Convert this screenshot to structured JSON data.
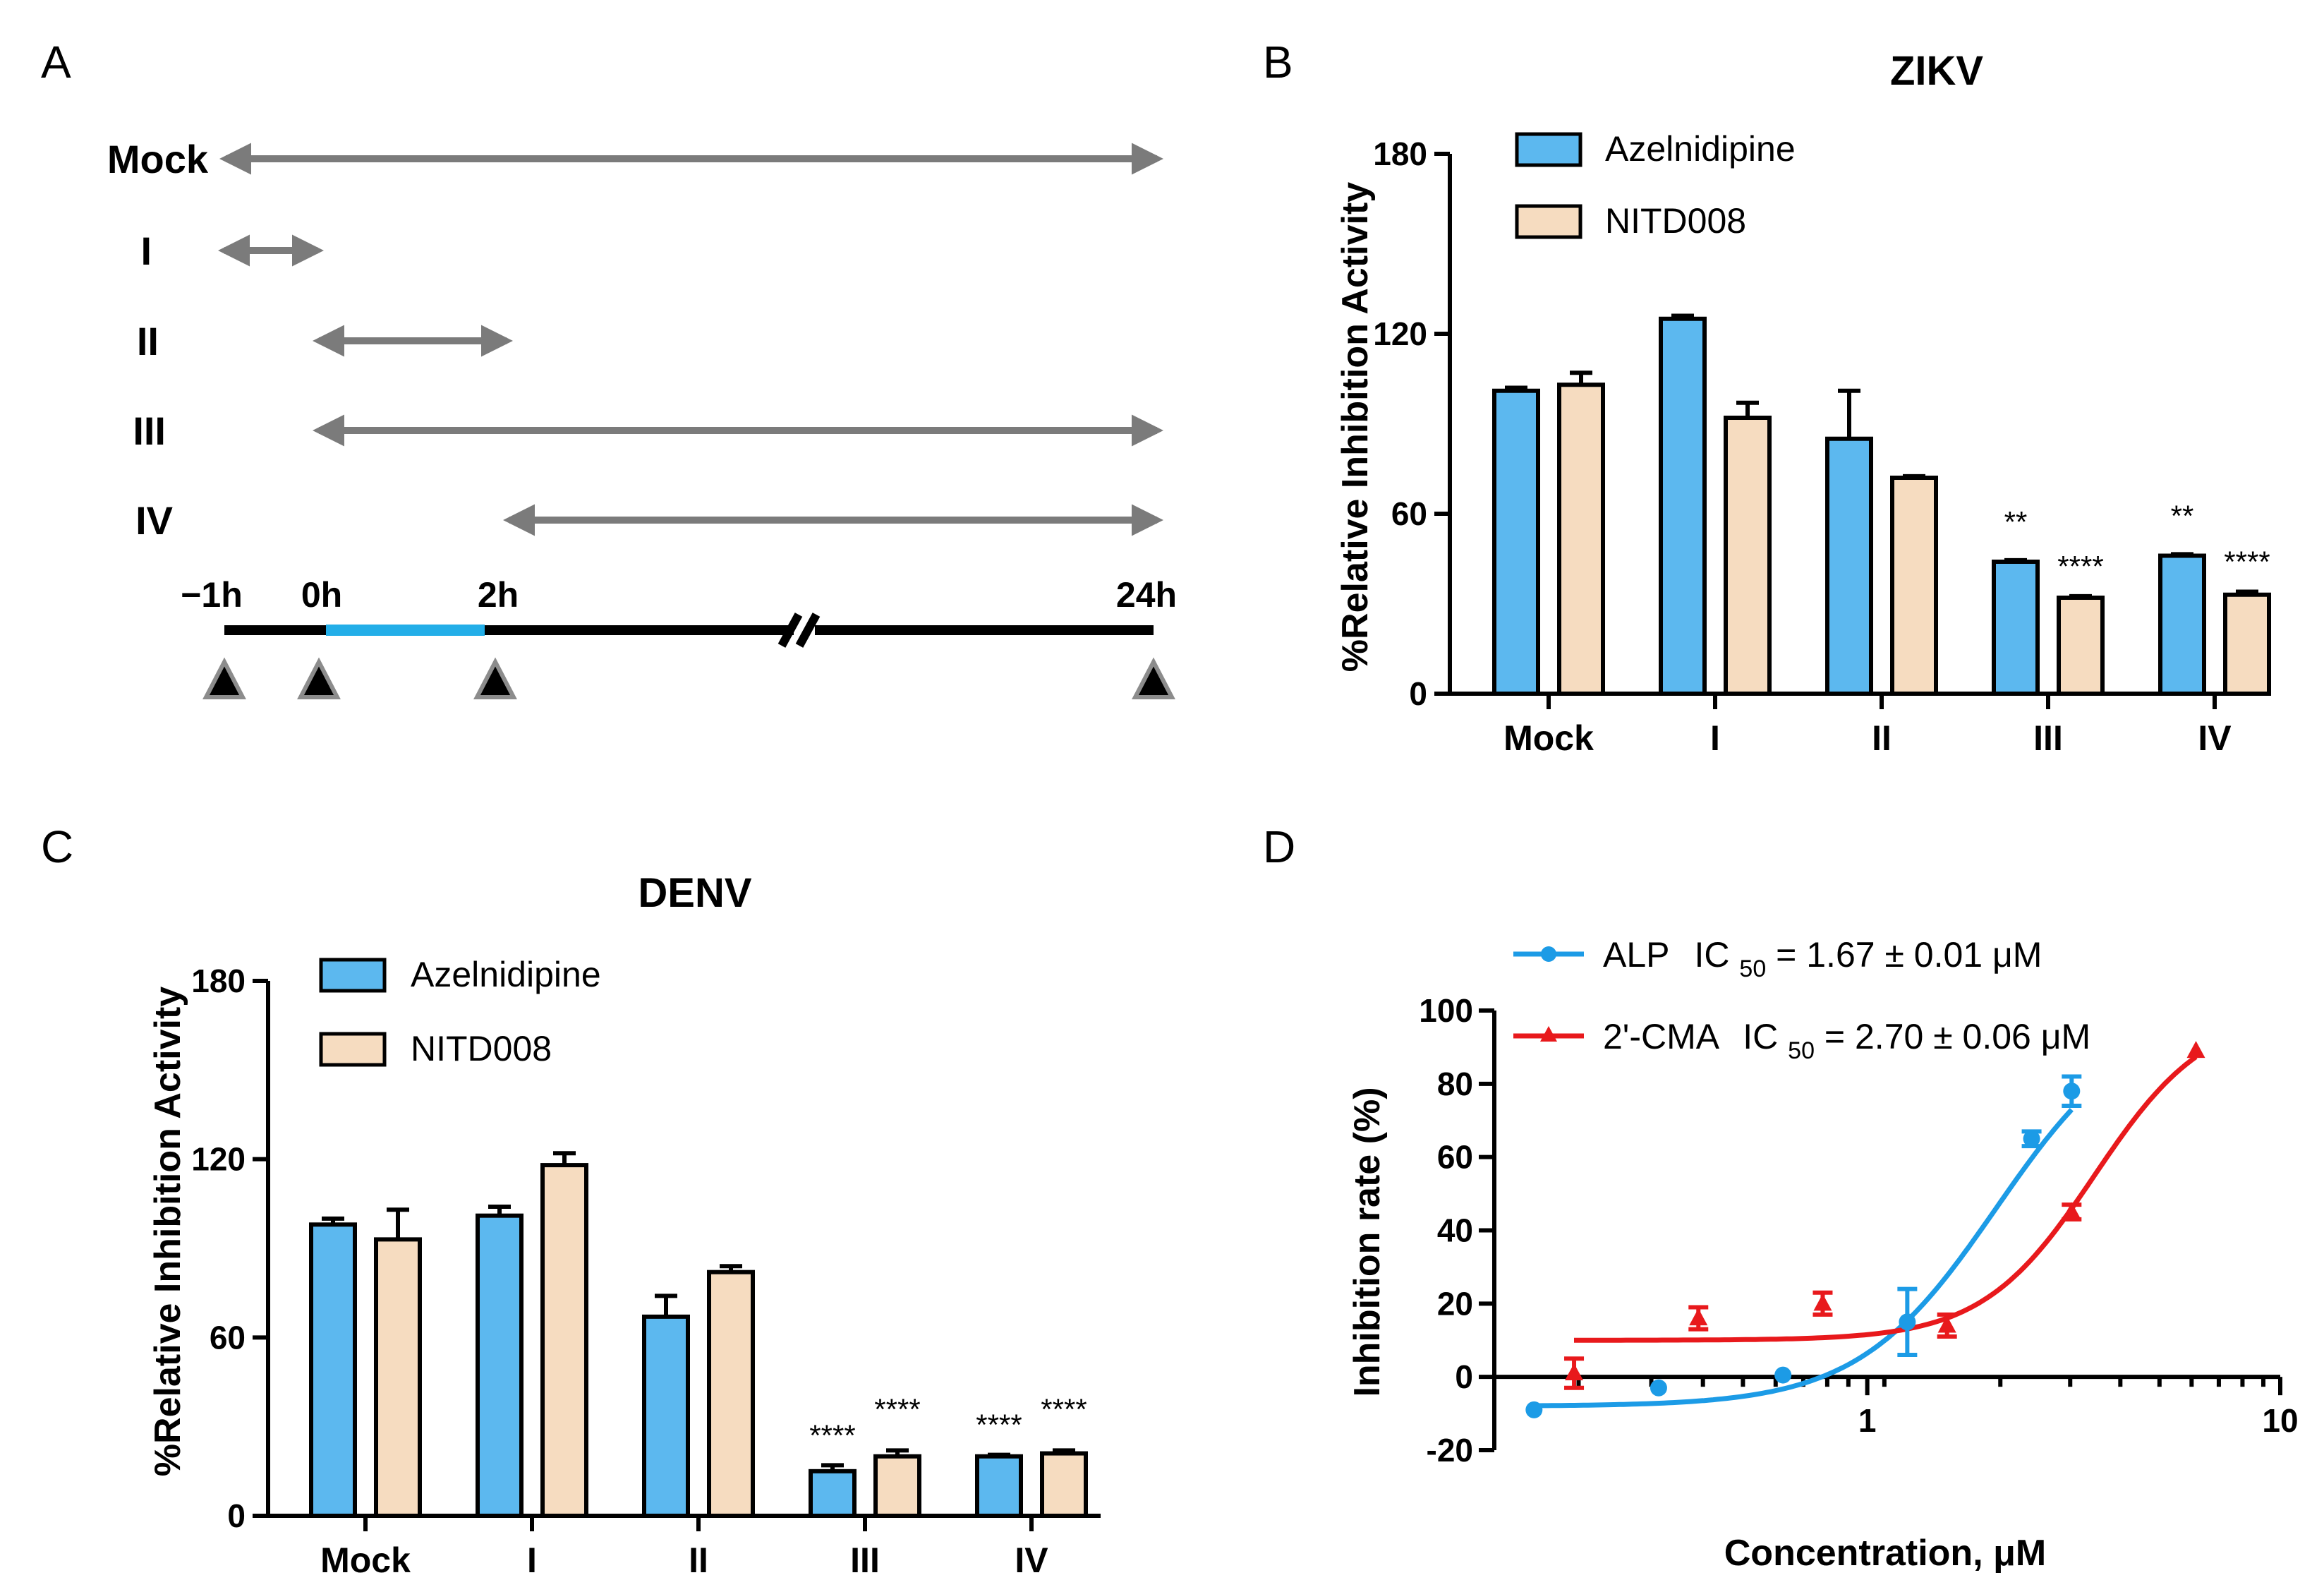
{
  "panels": {
    "a": "A",
    "b": "B",
    "c": "C",
    "d": "D"
  },
  "timeline": {
    "rows": [
      "Mock",
      "I",
      "II",
      "III",
      "IV"
    ],
    "times": [
      "−1h",
      "0h",
      "2h",
      "24h"
    ]
  },
  "colors": {
    "azelnidipine": "#5cb8ef",
    "nitd008": "#f6dcc0",
    "alp": "#1c9be6",
    "cma": "#e8191c",
    "timeline_blue": "#23aee8",
    "arrow_gray": "#7b7b7b"
  },
  "chart_data": [
    {
      "id": "zikv",
      "type": "bar",
      "title": "ZIKV",
      "ylabel": "%Relative Inhibition Activity",
      "ylim": [
        0,
        180
      ],
      "yticks": [
        "0",
        "60",
        "120",
        "180"
      ],
      "categories": [
        "Mock",
        "I",
        "II",
        "III",
        "IV"
      ],
      "series": [
        {
          "name": "Azelnidipine",
          "values": [
            101,
            125,
            85,
            44,
            46
          ],
          "errors": [
            1,
            1,
            16,
            0.5,
            0.5
          ],
          "annotations": [
            "",
            "",
            "",
            "**",
            "**"
          ]
        },
        {
          "name": "NITD008",
          "values": [
            103,
            92,
            72,
            32,
            33
          ],
          "errors": [
            4,
            5,
            0.5,
            0.5,
            1
          ],
          "annotations": [
            "",
            "",
            "",
            "****",
            "****"
          ]
        }
      ]
    },
    {
      "id": "denv",
      "type": "bar",
      "title": "DENV",
      "ylabel": "%Relative Inhibition Activity",
      "ylim": [
        0,
        180
      ],
      "yticks": [
        "0",
        "60",
        "120",
        "180"
      ],
      "categories": [
        "Mock",
        "I",
        "II",
        "III",
        "IV"
      ],
      "series": [
        {
          "name": "Azelnidipine",
          "values": [
            98,
            101,
            67,
            15,
            20
          ],
          "errors": [
            2,
            3,
            7,
            2,
            0.5
          ],
          "annotations": [
            "",
            "",
            "",
            "****",
            "****"
          ]
        },
        {
          "name": "NITD008",
          "values": [
            93,
            118,
            82,
            20,
            21
          ],
          "errors": [
            10,
            4,
            2,
            2,
            1
          ],
          "annotations": [
            "",
            "",
            "",
            "****",
            "****"
          ]
        }
      ]
    },
    {
      "id": "dose",
      "type": "scatter",
      "xscale": "log",
      "xlabel": "Concentration, μM",
      "ylabel": "Inhibition rate (%)",
      "xlim": [
        0.125,
        10
      ],
      "ylim": [
        -20,
        100
      ],
      "xticks": [
        "1",
        "10"
      ],
      "yticks": [
        "-20",
        "0",
        "20",
        "40",
        "60",
        "80",
        "100"
      ],
      "series": [
        {
          "name": "ALP",
          "ic50_label": "IC",
          "ic50_sub": "50",
          "ic50_text": " = 1.67 ± 0.01 μM",
          "marker": "circle",
          "x": [
            0.156,
            0.3125,
            0.625,
            1.25,
            2.5,
            3.125
          ],
          "y": [
            -9,
            -3,
            0.5,
            15,
            65,
            78
          ],
          "err": [
            0,
            0,
            0,
            9,
            2,
            4
          ]
        },
        {
          "name": "2'-CMA",
          "ic50_label": "IC",
          "ic50_sub": "50",
          "ic50_text": " = 2.70 ± 0.06 μM",
          "marker": "triangle",
          "x": [
            0.195,
            0.39,
            0.78,
            1.56,
            3.125,
            6.25
          ],
          "y": [
            1,
            16,
            20,
            14,
            45,
            89
          ],
          "err": [
            4,
            3,
            3,
            3,
            2,
            0
          ]
        }
      ]
    }
  ]
}
